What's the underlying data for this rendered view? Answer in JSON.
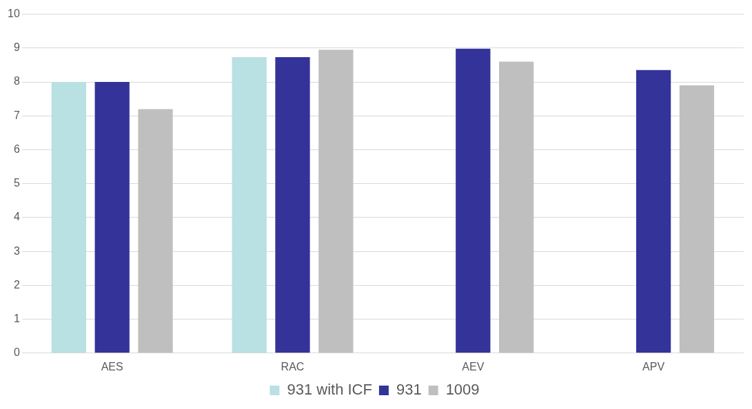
{
  "chart_data": {
    "type": "bar",
    "categories": [
      "AES",
      "RAC",
      "AEV",
      "APV"
    ],
    "series": [
      {
        "name": "931 with ICF",
        "color": "#b9e0e3",
        "values": [
          8.0,
          8.73,
          null,
          null
        ]
      },
      {
        "name": "931",
        "color": "#333399",
        "values": [
          8.0,
          8.73,
          8.98,
          8.35
        ]
      },
      {
        "name": "1009",
        "color": "#bfbfbf",
        "values": [
          7.2,
          8.95,
          8.6,
          7.9
        ]
      }
    ],
    "ylim": [
      0,
      10
    ],
    "yticks": [
      0,
      1,
      2,
      3,
      4,
      5,
      6,
      7,
      8,
      9,
      10
    ],
    "grid": "y",
    "legend": "bottom"
  }
}
